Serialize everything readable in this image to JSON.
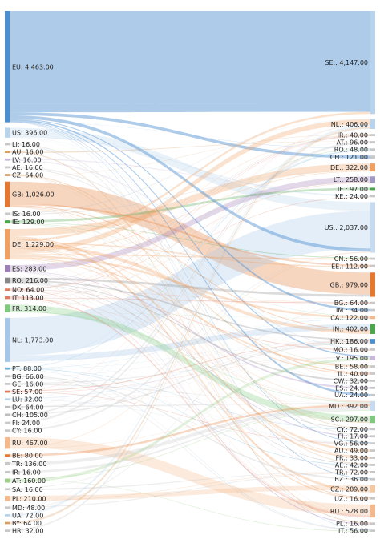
{
  "chart_data": {
    "type": "sankey",
    "title": "",
    "sources": [
      {
        "label": "EU: 4,463.00",
        "value": 4463,
        "color": "#4c8fd0"
      },
      {
        "label": "US: 396.00",
        "value": 396,
        "color": "#b8d3ec"
      },
      {
        "label": "LI: 16.00",
        "value": 16,
        "color": "#c8c8c8"
      },
      {
        "label": "AU: 16.00",
        "value": 16,
        "color": "#d9a066"
      },
      {
        "label": "LV: 16.00",
        "value": 16,
        "color": "#c9b8dc"
      },
      {
        "label": "AE: 16.00",
        "value": 16,
        "color": "#c8c8c8"
      },
      {
        "label": "CZ: 64.00",
        "value": 64,
        "color": "#d9a066"
      },
      {
        "label": "GB: 1,026.00",
        "value": 1026,
        "color": "#e6772e"
      },
      {
        "label": "IS: 16.00",
        "value": 16,
        "color": "#c8c8c8"
      },
      {
        "label": "IE: 129.00",
        "value": 129,
        "color": "#4aa64a"
      },
      {
        "label": "DE: 1,229.00",
        "value": 1229,
        "color": "#f0a060"
      },
      {
        "label": "ES: 283.00",
        "value": 283,
        "color": "#9e7fb8"
      },
      {
        "label": "RO: 216.00",
        "value": 216,
        "color": "#888888"
      },
      {
        "label": "NO: 64.00",
        "value": 64,
        "color": "#e07a5f"
      },
      {
        "label": "IT: 113.00",
        "value": 113,
        "color": "#e07a5f"
      },
      {
        "label": "FR: 314.00",
        "value": 314,
        "color": "#7fc97f"
      },
      {
        "label": "NL: 1,773.00",
        "value": 1773,
        "color": "#a6c8e8"
      },
      {
        "label": "PT: 88.00",
        "value": 88,
        "color": "#6baed6"
      },
      {
        "label": "BG: 66.00",
        "value": 66,
        "color": "#bcbcbc"
      },
      {
        "label": "GE: 16.00",
        "value": 16,
        "color": "#c8c8c8"
      },
      {
        "label": "SE: 57.00",
        "value": 57,
        "color": "#e07a5f"
      },
      {
        "label": "LU: 32.00",
        "value": 32,
        "color": "#b8d3ec"
      },
      {
        "label": "DK: 64.00",
        "value": 64,
        "color": "#bcbcbc"
      },
      {
        "label": "CH: 105.00",
        "value": 105,
        "color": "#bcbcbc"
      },
      {
        "label": "FI: 24.00",
        "value": 24,
        "color": "#c8c8c8"
      },
      {
        "label": "CY: 16.00",
        "value": 16,
        "color": "#c8c8c8"
      },
      {
        "label": "RU: 467.00",
        "value": 467,
        "color": "#f5b88a"
      },
      {
        "label": "BE: 80.00",
        "value": 80,
        "color": "#e6772e"
      },
      {
        "label": "TR: 136.00",
        "value": 136,
        "color": "#c8c8c8"
      },
      {
        "label": "IR: 16.00",
        "value": 16,
        "color": "#c8c8c8"
      },
      {
        "label": "AT: 160.00",
        "value": 160,
        "color": "#9ccf8a"
      },
      {
        "label": "SA: 16.00",
        "value": 16,
        "color": "#c8c8c8"
      },
      {
        "label": "PL: 210.00",
        "value": 210,
        "color": "#f5b88a"
      },
      {
        "label": "MD: 48.00",
        "value": 48,
        "color": "#c8c8c8"
      },
      {
        "label": "UA: 72.00",
        "value": 72,
        "color": "#b8d3ec"
      },
      {
        "label": "BY: 64.00",
        "value": 64,
        "color": "#d9a066"
      },
      {
        "label": "HR: 32.00",
        "value": 32,
        "color": "#c8c8c8"
      }
    ],
    "targets": [
      {
        "label": "SE.: 4,147.00",
        "value": 4147,
        "color": "#b8d3ec"
      },
      {
        "label": "NL.: 406.00",
        "value": 406,
        "color": "#b8d3ec"
      },
      {
        "label": "IR.: 40.00",
        "value": 40,
        "color": "#c8c8c8"
      },
      {
        "label": "AT.: 96.00",
        "value": 96,
        "color": "#c8c8c8"
      },
      {
        "label": "RO.: 48.00",
        "value": 48,
        "color": "#c8c8c8"
      },
      {
        "label": "CH.: 121.00",
        "value": 121,
        "color": "#c8c8c8"
      },
      {
        "label": "DE.: 322.00",
        "value": 322,
        "color": "#f0a060"
      },
      {
        "label": "LT.: 258.00",
        "value": 258,
        "color": "#9e9ac8"
      },
      {
        "label": "IE.: 97.00",
        "value": 97,
        "color": "#4aa64a"
      },
      {
        "label": "KE.: 24.00",
        "value": 24,
        "color": "#c8c8c8"
      },
      {
        "label": "US.: 2,037.00",
        "value": 2037,
        "color": "#c6dbef"
      },
      {
        "label": "CN.: 56.00",
        "value": 56,
        "color": "#c8c8c8"
      },
      {
        "label": "EE.: 112.00",
        "value": 112,
        "color": "#c8c8c8"
      },
      {
        "label": "GB.: 979.00",
        "value": 979,
        "color": "#e6772e"
      },
      {
        "label": "BG.: 64.00",
        "value": 64,
        "color": "#c8c8c8"
      },
      {
        "label": "IM.: 34.00",
        "value": 34,
        "color": "#c8c8c8"
      },
      {
        "label": "CA.: 122.00",
        "value": 122,
        "color": "#f5b88a"
      },
      {
        "label": "IN.: 402.00",
        "value": 402,
        "color": "#4aa64a"
      },
      {
        "label": "HK.: 186.00",
        "value": 186,
        "color": "#4c8fd0"
      },
      {
        "label": "MQ.: 16.00",
        "value": 16,
        "color": "#c8c8c8"
      },
      {
        "label": "LV.: 195.00",
        "value": 195,
        "color": "#c9b8dc"
      },
      {
        "label": "BE.: 58.00",
        "value": 58,
        "color": "#c8c8c8"
      },
      {
        "label": "IL.: 40.00",
        "value": 40,
        "color": "#c8c8c8"
      },
      {
        "label": "CW.: 32.00",
        "value": 32,
        "color": "#c8c8c8"
      },
      {
        "label": "ES.: 24.00",
        "value": 24,
        "color": "#c8c8c8"
      },
      {
        "label": "UA.: 24.00",
        "value": 24,
        "color": "#c8c8c8"
      },
      {
        "label": "MD.: 392.00",
        "value": 392,
        "color": "#c6dbef"
      },
      {
        "label": "SC.: 297.00",
        "value": 297,
        "color": "#7fc97f"
      },
      {
        "label": "CY.: 72.00",
        "value": 72,
        "color": "#c8c8c8"
      },
      {
        "label": "FI.: 17.00",
        "value": 17,
        "color": "#c8c8c8"
      },
      {
        "label": "VG.: 56.00",
        "value": 56,
        "color": "#c8c8c8"
      },
      {
        "label": "AU.: 49.00",
        "value": 49,
        "color": "#c8c8c8"
      },
      {
        "label": "FR.: 33.00",
        "value": 33,
        "color": "#c8c8c8"
      },
      {
        "label": "AE.: 42.00",
        "value": 42,
        "color": "#c8c8c8"
      },
      {
        "label": "TR.: 72.00",
        "value": 72,
        "color": "#c8c8c8"
      },
      {
        "label": "BZ.: 36.00",
        "value": 36,
        "color": "#c8c8c8"
      },
      {
        "label": "CZ.: 289.00",
        "value": 289,
        "color": "#f5c9a0"
      },
      {
        "label": "UZ.: 16.00",
        "value": 16,
        "color": "#c8c8c8"
      },
      {
        "label": "RU.: 528.00",
        "value": 528,
        "color": "#f5b88a"
      },
      {
        "label": "PL.: 16.00",
        "value": 16,
        "color": "#c8c8c8"
      },
      {
        "label": "IT.: 56.00",
        "value": 56,
        "color": "#c8c8c8"
      }
    ]
  }
}
